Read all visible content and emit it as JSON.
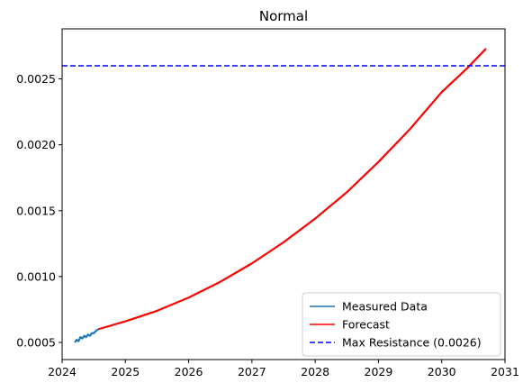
{
  "chart_data": {
    "type": "line",
    "title": "Normal",
    "xlabel": "",
    "ylabel": "",
    "xlim": [
      2024,
      2031
    ],
    "ylim": [
      0.00037,
      0.00288
    ],
    "x_ticks": [
      "2024",
      "2025",
      "2026",
      "2027",
      "2028",
      "2029",
      "2030",
      "2031"
    ],
    "y_ticks": [
      "0.0005",
      "0.0010",
      "0.0015",
      "0.0020",
      "0.0025"
    ],
    "legend": {
      "placement": "lower-right"
    },
    "grid": false,
    "series": [
      {
        "name": "Measured Data",
        "color": "#1f77b4",
        "style": "solid",
        "x": [
          2024.2,
          2024.23,
          2024.26,
          2024.29,
          2024.32,
          2024.35,
          2024.38,
          2024.41,
          2024.44,
          2024.47,
          2024.5,
          2024.54,
          2024.57
        ],
        "y": [
          0.0005,
          0.00052,
          0.00051,
          0.00054,
          0.00053,
          0.00055,
          0.00054,
          0.00056,
          0.00055,
          0.00057,
          0.00057,
          0.00059,
          0.0006
        ]
      },
      {
        "name": "Forecast",
        "color": "#ff0000",
        "style": "solid",
        "x": [
          2024.57,
          2025.0,
          2025.5,
          2026.0,
          2026.5,
          2027.0,
          2027.5,
          2028.0,
          2028.5,
          2029.0,
          2029.5,
          2030.0,
          2030.4,
          2030.7
        ],
        "y": [
          0.0006,
          0.00066,
          0.00074,
          0.00084,
          0.00096,
          0.0011,
          0.00126,
          0.00144,
          0.00164,
          0.00187,
          0.00212,
          0.0024,
          0.00258,
          0.00273
        ]
      },
      {
        "name": "Max Resistance (0.0026)",
        "color": "#0000ff",
        "style": "dashed",
        "x": [
          2024,
          2031
        ],
        "y": [
          0.0026,
          0.0026
        ]
      }
    ]
  }
}
